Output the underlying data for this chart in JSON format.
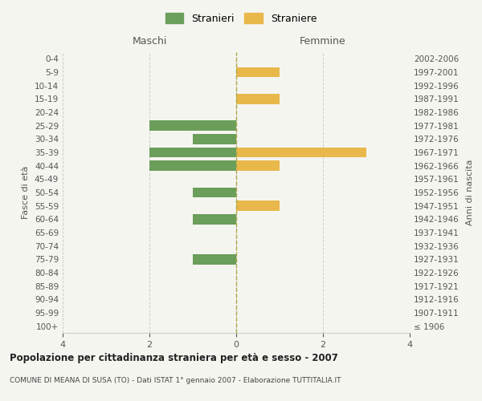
{
  "age_groups": [
    "100+",
    "95-99",
    "90-94",
    "85-89",
    "80-84",
    "75-79",
    "70-74",
    "65-69",
    "60-64",
    "55-59",
    "50-54",
    "45-49",
    "40-44",
    "35-39",
    "30-34",
    "25-29",
    "20-24",
    "15-19",
    "10-14",
    "5-9",
    "0-4"
  ],
  "birth_years": [
    "≤ 1906",
    "1907-1911",
    "1912-1916",
    "1917-1921",
    "1922-1926",
    "1927-1931",
    "1932-1936",
    "1937-1941",
    "1942-1946",
    "1947-1951",
    "1952-1956",
    "1957-1961",
    "1962-1966",
    "1967-1971",
    "1972-1976",
    "1977-1981",
    "1982-1986",
    "1987-1991",
    "1992-1996",
    "1997-2001",
    "2002-2006"
  ],
  "maschi_stranieri": [
    0,
    0,
    0,
    0,
    0,
    1,
    0,
    0,
    1,
    0,
    1,
    0,
    2,
    2,
    1,
    2,
    0,
    0,
    0,
    0,
    0
  ],
  "femmine_straniere": [
    0,
    0,
    0,
    0,
    0,
    0,
    0,
    0,
    0,
    1,
    0,
    0,
    1,
    3,
    0,
    0,
    0,
    1,
    0,
    1,
    0
  ],
  "male_color": "#6a9e5a",
  "female_color": "#e8b84b",
  "xlim": 4,
  "title": "Popolazione per cittadinanza straniera per età e sesso - 2007",
  "subtitle": "COMUNE DI MEANA DI SUSA (TO) - Dati ISTAT 1° gennaio 2007 - Elaborazione TUTTITALIA.IT",
  "legend_male": "Stranieri",
  "legend_female": "Straniere",
  "label_maschi": "Maschi",
  "label_femmine": "Femmine",
  "ylabel_left": "Fasce di età",
  "ylabel_right": "Anni di nascita",
  "bg_color": "#f5f5f0",
  "bar_height": 0.75
}
